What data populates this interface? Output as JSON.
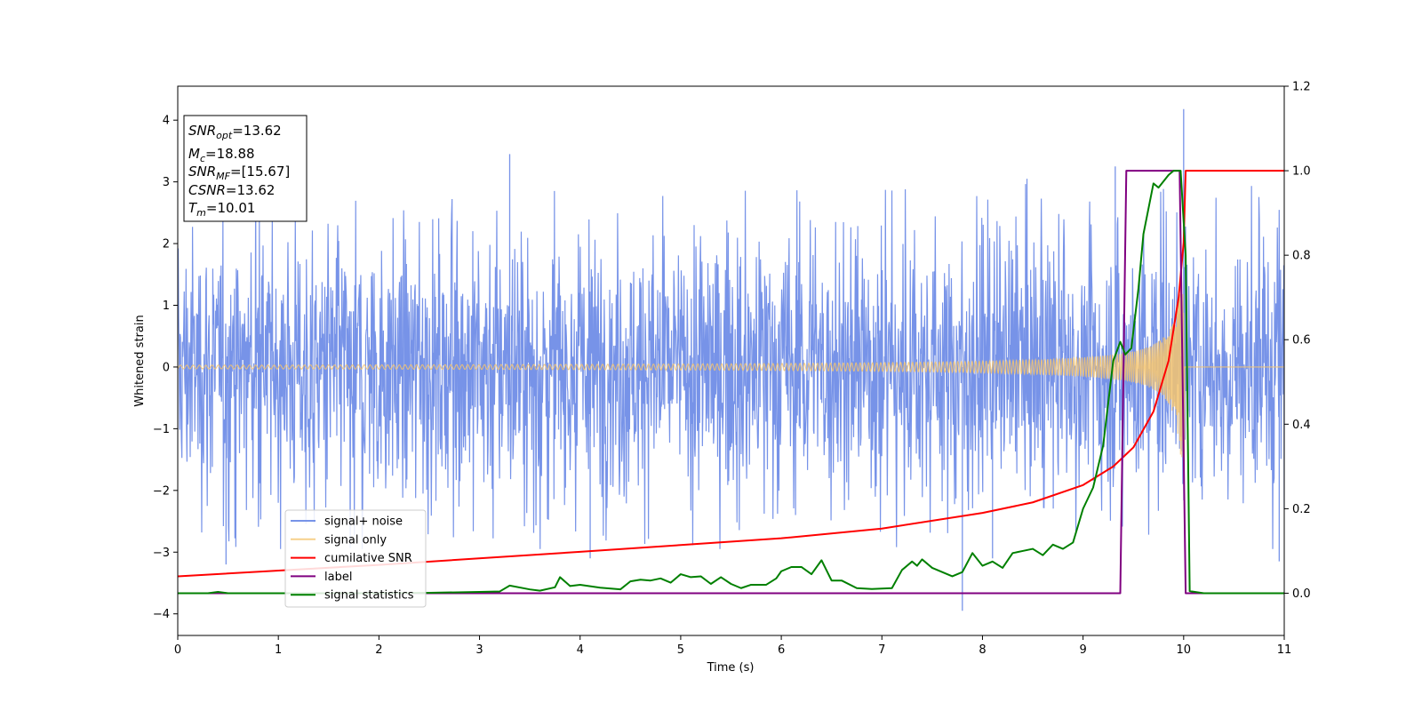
{
  "chart_data": {
    "type": "line",
    "title": "",
    "xlabel": "Time (s)",
    "ylabel": "Whitened strain",
    "xlim": [
      0,
      11
    ],
    "ylim_left": [
      -4.35,
      4.55
    ],
    "ylim_right": [
      -0.1,
      1.2
    ],
    "x_ticks": [
      "0",
      "1",
      "2",
      "3",
      "4",
      "5",
      "6",
      "7",
      "8",
      "9",
      "10",
      "11"
    ],
    "y_ticks_left": [
      "−4",
      "−3",
      "−2",
      "−1",
      "0",
      "1",
      "2",
      "3",
      "4"
    ],
    "y_ticks_right": [
      "0.0",
      "0.2",
      "0.4",
      "0.6",
      "0.8",
      "1.0",
      "1.2"
    ],
    "grid": false,
    "legend_position": "lower-left",
    "colors": {
      "signal_noise": "#7793e8",
      "signal_only": "#f5c46e",
      "cumulative_snr": "#ff0000",
      "label": "#800080",
      "signal_statistics": "#008000"
    },
    "legend": [
      "signal+ noise",
      "signal only",
      "cumilative SNR",
      "label",
      "signal statistics"
    ],
    "info_box": [
      {
        "base": "SNR",
        "sub": "opt",
        "value": "=13.62"
      },
      {
        "base": "M",
        "sub": "c",
        "value": "=18.88"
      },
      {
        "base": "SNR",
        "sub": "MF",
        "value": "=[15.67]"
      },
      {
        "base": "CSNR",
        "sub": "",
        "value": "=13.62"
      },
      {
        "base": "T",
        "sub": "m",
        "value": "=10.01"
      }
    ],
    "signal_noise": {
      "axis": "left",
      "x_range": [
        0,
        11
      ],
      "typical_band": [
        -1.7,
        1.7
      ],
      "extreme_spikes": [
        {
          "x": 3.3,
          "y": 3.45
        },
        {
          "x": 0.48,
          "y": -3.2
        },
        {
          "x": 7.8,
          "y": -3.95
        },
        {
          "x": 10.0,
          "y": 4.18
        },
        {
          "x": 9.32,
          "y": 3.25
        },
        {
          "x": 8.1,
          "y": -3.1
        },
        {
          "x": 4.1,
          "y": -3.1
        },
        {
          "x": 10.95,
          "y": -3.15
        }
      ]
    },
    "signal_only": {
      "axis": "left",
      "model": "chirp",
      "x_range": [
        0,
        11
      ],
      "merger_time": 10.01,
      "amplitude_start": 0.03,
      "amplitude_peak": 1.8,
      "post_merger": 0
    },
    "cumulative_snr": {
      "axis": "right",
      "points": [
        [
          0,
          0.04
        ],
        [
          2,
          0.067
        ],
        [
          4,
          0.098
        ],
        [
          5,
          0.114
        ],
        [
          6,
          0.13
        ],
        [
          7,
          0.153
        ],
        [
          8,
          0.19
        ],
        [
          8.5,
          0.215
        ],
        [
          9,
          0.256
        ],
        [
          9.3,
          0.3
        ],
        [
          9.5,
          0.345
        ],
        [
          9.7,
          0.43
        ],
        [
          9.85,
          0.55
        ],
        [
          9.95,
          0.7
        ],
        [
          10.0,
          0.83
        ],
        [
          10.02,
          1.0
        ],
        [
          11,
          1.0
        ]
      ]
    },
    "label": {
      "axis": "right",
      "points": [
        [
          0,
          0
        ],
        [
          9.37,
          0
        ],
        [
          9.43,
          1.0
        ],
        [
          9.96,
          1.0
        ],
        [
          10.02,
          0
        ],
        [
          11,
          0
        ]
      ]
    },
    "signal_statistics": {
      "axis": "right",
      "points": [
        [
          0,
          0
        ],
        [
          0.3,
          0
        ],
        [
          0.4,
          0.003
        ],
        [
          0.5,
          0
        ],
        [
          1,
          0
        ],
        [
          2,
          0
        ],
        [
          2.5,
          0.001
        ],
        [
          3.0,
          0.003
        ],
        [
          3.2,
          0.004
        ],
        [
          3.3,
          0.018
        ],
        [
          3.5,
          0.009
        ],
        [
          3.6,
          0.006
        ],
        [
          3.75,
          0.014
        ],
        [
          3.8,
          0.038
        ],
        [
          3.9,
          0.017
        ],
        [
          4.0,
          0.02
        ],
        [
          4.2,
          0.013
        ],
        [
          4.4,
          0.009
        ],
        [
          4.5,
          0.028
        ],
        [
          4.6,
          0.032
        ],
        [
          4.7,
          0.03
        ],
        [
          4.8,
          0.035
        ],
        [
          4.9,
          0.025
        ],
        [
          5.0,
          0.045
        ],
        [
          5.1,
          0.038
        ],
        [
          5.2,
          0.04
        ],
        [
          5.3,
          0.022
        ],
        [
          5.4,
          0.038
        ],
        [
          5.5,
          0.022
        ],
        [
          5.6,
          0.012
        ],
        [
          5.7,
          0.02
        ],
        [
          5.85,
          0.02
        ],
        [
          5.95,
          0.035
        ],
        [
          6.0,
          0.052
        ],
        [
          6.1,
          0.062
        ],
        [
          6.2,
          0.062
        ],
        [
          6.3,
          0.045
        ],
        [
          6.4,
          0.078
        ],
        [
          6.5,
          0.03
        ],
        [
          6.6,
          0.03
        ],
        [
          6.75,
          0.012
        ],
        [
          6.9,
          0.01
        ],
        [
          7.1,
          0.012
        ],
        [
          7.2,
          0.055
        ],
        [
          7.3,
          0.075
        ],
        [
          7.35,
          0.065
        ],
        [
          7.4,
          0.08
        ],
        [
          7.5,
          0.06
        ],
        [
          7.7,
          0.04
        ],
        [
          7.8,
          0.05
        ],
        [
          7.9,
          0.095
        ],
        [
          8.0,
          0.065
        ],
        [
          8.1,
          0.075
        ],
        [
          8.2,
          0.06
        ],
        [
          8.3,
          0.095
        ],
        [
          8.4,
          0.1
        ],
        [
          8.5,
          0.105
        ],
        [
          8.6,
          0.09
        ],
        [
          8.7,
          0.115
        ],
        [
          8.8,
          0.105
        ],
        [
          8.9,
          0.12
        ],
        [
          9.0,
          0.2
        ],
        [
          9.1,
          0.25
        ],
        [
          9.2,
          0.35
        ],
        [
          9.3,
          0.55
        ],
        [
          9.37,
          0.595
        ],
        [
          9.42,
          0.565
        ],
        [
          9.48,
          0.58
        ],
        [
          9.55,
          0.72
        ],
        [
          9.6,
          0.85
        ],
        [
          9.7,
          0.97
        ],
        [
          9.75,
          0.96
        ],
        [
          9.85,
          0.99
        ],
        [
          9.9,
          1.0
        ],
        [
          9.97,
          1.0
        ],
        [
          10.02,
          0.8
        ],
        [
          10.06,
          0.005
        ],
        [
          10.2,
          0
        ],
        [
          11,
          0
        ]
      ]
    }
  }
}
